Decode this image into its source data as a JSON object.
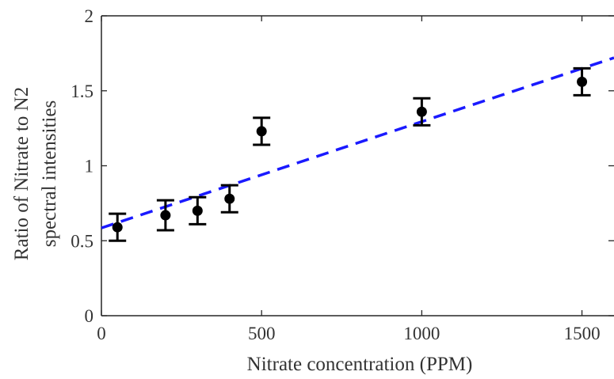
{
  "chart_data": {
    "type": "scatter",
    "title": "",
    "xlabel": "Nitrate concentration (PPM)",
    "ylabel": [
      "Ratio of Nitrate to N2",
      "spectral intensities"
    ],
    "xlim": [
      0,
      1600
    ],
    "ylim": [
      0,
      2
    ],
    "x_ticks": [
      0,
      500,
      1000,
      1500
    ],
    "y_ticks": [
      0,
      0.5,
      1,
      1.5,
      2
    ],
    "x_tick_labels": [
      "0",
      "500",
      "1000",
      "1500"
    ],
    "y_tick_labels": [
      "0",
      "0.5",
      "1",
      "1.5",
      "2"
    ],
    "grid": false,
    "series": [
      {
        "type": "errorbar",
        "color": "#000000",
        "points": [
          {
            "x": 50,
            "y": 0.59,
            "err": 0.09
          },
          {
            "x": 200,
            "y": 0.67,
            "err": 0.1
          },
          {
            "x": 300,
            "y": 0.7,
            "err": 0.09
          },
          {
            "x": 400,
            "y": 0.78,
            "err": 0.09
          },
          {
            "x": 500,
            "y": 1.23,
            "err": 0.09
          },
          {
            "x": 1000,
            "y": 1.36,
            "err": 0.09
          },
          {
            "x": 1500,
            "y": 1.56,
            "err": 0.09
          }
        ]
      },
      {
        "type": "fit-line",
        "style": "dashed",
        "color": "#1a1aff",
        "x": [
          0,
          1600
        ],
        "y": [
          0.585,
          1.72
        ]
      }
    ]
  }
}
